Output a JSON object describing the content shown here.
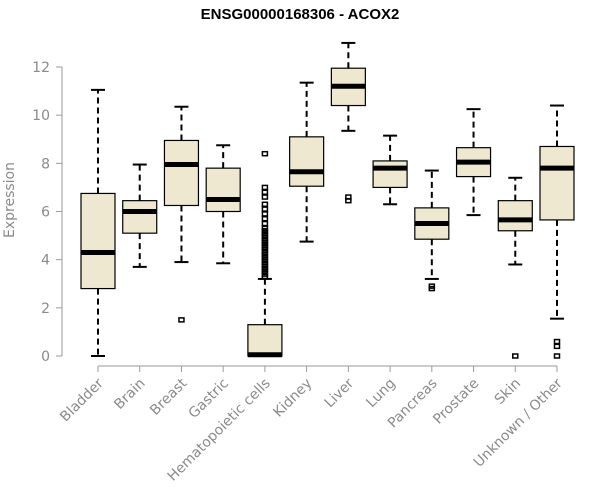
{
  "chart_data": {
    "type": "boxplot",
    "title": "ENSG00000168306 - ACOX2",
    "xlabel": "",
    "ylabel": "Expression",
    "ylim": [
      0,
      12.5
    ],
    "yticks": [
      0,
      2,
      4,
      6,
      8,
      10,
      12
    ],
    "grid": false,
    "colors": {
      "box_fill": "#efe8d1",
      "box_stroke": "#000000",
      "axis": "#9a9a9a",
      "text": "#8a8a8a"
    },
    "categories": [
      "Bladder",
      "Brain",
      "Breast",
      "Gastric",
      "Hematopoietic cells",
      "Kidney",
      "Liver",
      "Lung",
      "Pancreas",
      "Prostate",
      "Skin",
      "Unknown / Other"
    ],
    "boxes": [
      {
        "name": "Bladder",
        "min": 0.0,
        "q1": 2.8,
        "median": 4.3,
        "q3": 6.75,
        "max": 11.05,
        "outliers": []
      },
      {
        "name": "Brain",
        "min": 3.7,
        "q1": 5.1,
        "median": 6.0,
        "q3": 6.45,
        "max": 7.95,
        "outliers": []
      },
      {
        "name": "Breast",
        "min": 3.9,
        "q1": 6.25,
        "median": 7.95,
        "q3": 8.95,
        "max": 10.35,
        "outliers": [
          1.5
        ]
      },
      {
        "name": "Gastric",
        "min": 3.85,
        "q1": 6.0,
        "median": 6.5,
        "q3": 7.8,
        "max": 8.75,
        "outliers": []
      },
      {
        "name": "Hematopoietic cells",
        "min": 0.0,
        "q1": 0.0,
        "median": 0.05,
        "q3": 1.3,
        "max": 3.2,
        "outliers": [
          3.3,
          3.4,
          3.5,
          3.6,
          3.7,
          3.8,
          3.9,
          4.0,
          4.1,
          4.2,
          4.3,
          4.4,
          4.5,
          4.6,
          4.7,
          4.8,
          4.9,
          5.0,
          5.1,
          5.2,
          5.3,
          5.5,
          5.7,
          5.9,
          6.1,
          6.3,
          6.6,
          6.8,
          7.0,
          8.4
        ]
      },
      {
        "name": "Kidney",
        "min": 4.75,
        "q1": 7.05,
        "median": 7.65,
        "q3": 9.1,
        "max": 11.35,
        "outliers": []
      },
      {
        "name": "Liver",
        "min": 9.35,
        "q1": 10.4,
        "median": 11.2,
        "q3": 11.95,
        "max": 13.0,
        "outliers": [
          6.45,
          6.6
        ]
      },
      {
        "name": "Lung",
        "min": 6.3,
        "q1": 7.0,
        "median": 7.8,
        "q3": 8.1,
        "max": 9.15,
        "outliers": []
      },
      {
        "name": "Pancreas",
        "min": 3.2,
        "q1": 4.85,
        "median": 5.5,
        "q3": 6.15,
        "max": 7.7,
        "outliers": [
          2.8,
          2.9
        ]
      },
      {
        "name": "Prostate",
        "min": 5.85,
        "q1": 7.45,
        "median": 8.05,
        "q3": 8.65,
        "max": 10.25,
        "outliers": []
      },
      {
        "name": "Skin",
        "min": 3.8,
        "q1": 5.2,
        "median": 5.65,
        "q3": 6.45,
        "max": 7.4,
        "outliers": [
          0.0
        ]
      },
      {
        "name": "Unknown / Other",
        "min": 1.55,
        "q1": 5.65,
        "median": 7.8,
        "q3": 8.7,
        "max": 10.4,
        "outliers": [
          0.0,
          0.4,
          0.6
        ]
      }
    ]
  }
}
